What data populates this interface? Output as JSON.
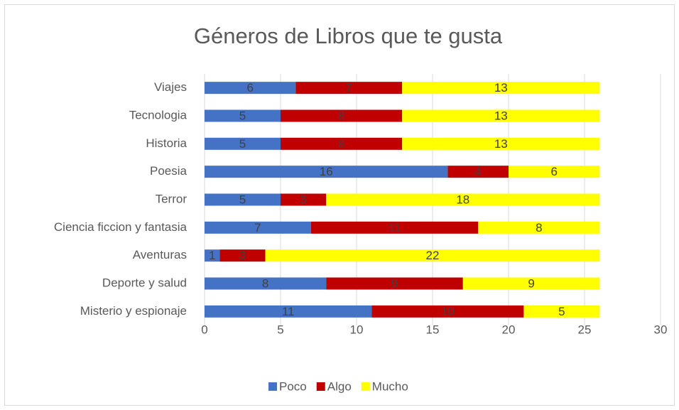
{
  "chart_data": {
    "type": "stacked_bar_horizontal",
    "title": "Géneros de Libros que te gusta",
    "categories": [
      "Viajes",
      "Tecnologia",
      "Historia",
      "Poesia",
      "Terror",
      "Ciencia ficcion y fantasia",
      "Aventuras",
      "Deporte y salud",
      "Misterio y espionaje"
    ],
    "series": [
      {
        "name": "Poco",
        "color": "#4472c4",
        "values": [
          6,
          5,
          5,
          16,
          5,
          7,
          1,
          8,
          11
        ]
      },
      {
        "name": "Algo",
        "color": "#c00000",
        "values": [
          7,
          8,
          8,
          4,
          3,
          11,
          3,
          9,
          10
        ]
      },
      {
        "name": "Mucho",
        "color": "#ffff00",
        "values": [
          13,
          13,
          13,
          6,
          18,
          8,
          22,
          9,
          5
        ]
      }
    ],
    "xlim": [
      0,
      30
    ],
    "xticks": [
      0,
      5,
      10,
      15,
      20,
      25,
      30
    ],
    "grid": true,
    "legend": "bottom"
  }
}
